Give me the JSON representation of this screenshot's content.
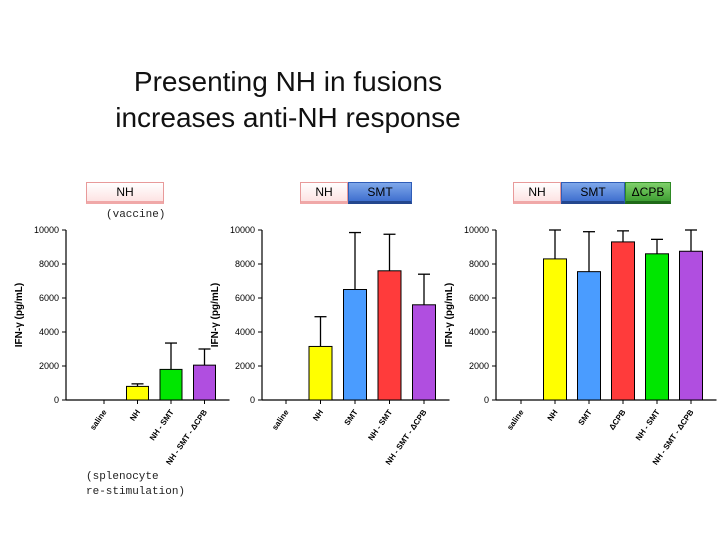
{
  "slide": {
    "title_line1": "Presenting NH in fusions",
    "title_line2": "increases anti-NH response",
    "vaccine_note": "(vaccine)",
    "restim_note_line1": "(splenocyte",
    "restim_note_line2": "re-stimulation)"
  },
  "constructs": [
    {
      "segments": [
        {
          "label": "NH",
          "kind": "nh"
        }
      ]
    },
    {
      "segments": [
        {
          "label": "NH",
          "kind": "nh"
        },
        {
          "label": "SMT",
          "kind": "smt"
        }
      ]
    },
    {
      "segments": [
        {
          "label": "NH",
          "kind": "nh"
        },
        {
          "label": "SMT",
          "kind": "smt"
        },
        {
          "label": "ΔCPB",
          "kind": "cpb"
        }
      ]
    }
  ],
  "colors": {
    "yellow": "#ffff00",
    "blue": "#4a9cff",
    "red": "#ff3b3b",
    "green": "#00e600",
    "purple": "#b04ee0"
  },
  "chart_data": [
    {
      "type": "bar",
      "ylabel": "IFN-γ (pg/mL)",
      "ylim": [
        0,
        10000
      ],
      "yticks": [
        "0",
        "2000",
        "4000",
        "6000",
        "8000",
        "10000"
      ],
      "categories": [
        "saline",
        "NH",
        "NH - SMT",
        "NH - SMT - ΔCPB"
      ],
      "values": [
        0,
        800,
        1800,
        2050
      ],
      "errors": [
        0,
        150,
        1550,
        950
      ],
      "bar_colors": [
        "none",
        "yellow",
        "green",
        "purple"
      ]
    },
    {
      "type": "bar",
      "ylabel": "IFN-γ (pg/mL)",
      "ylim": [
        0,
        10000
      ],
      "yticks": [
        "0",
        "2000",
        "4000",
        "6000",
        "8000",
        "10000"
      ],
      "categories": [
        "saline",
        "NH",
        "SMT",
        "NH - SMT",
        "NH - SMT - ΔCPB"
      ],
      "values": [
        0,
        3150,
        6500,
        7600,
        5600
      ],
      "errors": [
        0,
        1750,
        3350,
        2150,
        1800
      ],
      "bar_colors": [
        "none",
        "yellow",
        "blue",
        "red",
        "purple"
      ]
    },
    {
      "type": "bar",
      "ylabel": "IFN-γ (pg/mL)",
      "ylim": [
        0,
        10000
      ],
      "yticks": [
        "0",
        "2000",
        "4000",
        "6000",
        "8000",
        "10000"
      ],
      "categories": [
        "saline",
        "NH",
        "SMT",
        "ΔCPB",
        "NH - SMT",
        "NH - SMT - ΔCPB"
      ],
      "values": [
        0,
        8300,
        7550,
        9300,
        8600,
        8750
      ],
      "errors": [
        0,
        1700,
        2350,
        650,
        850,
        1250
      ],
      "bar_colors": [
        "none",
        "yellow",
        "blue",
        "red",
        "green",
        "purple"
      ]
    }
  ]
}
